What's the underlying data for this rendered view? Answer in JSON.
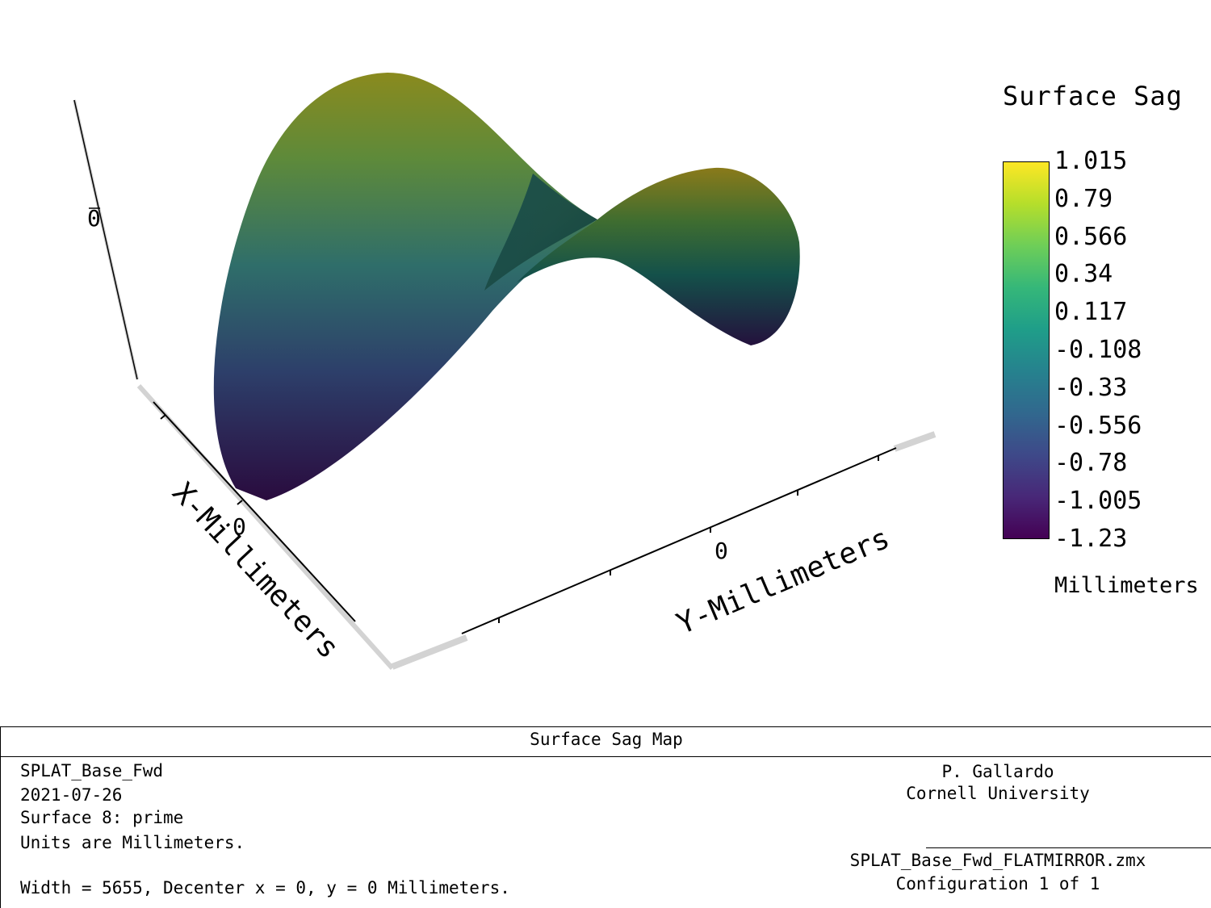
{
  "chart_data": {
    "type": "surface3d",
    "title": "",
    "xlabel": "X-Millimeters",
    "ylabel": "Y-Millimeters",
    "x_ticks": [
      "0"
    ],
    "y_ticks": [
      "0"
    ],
    "z_ticks": [
      "0"
    ],
    "zlim": [
      -1.23,
      1.015
    ],
    "shape": "saddle",
    "colormap": "viridis",
    "colorbar": {
      "title": "Surface Sag",
      "unit": "Millimeters",
      "ticks": [
        "1.015",
        "0.79",
        "0.566",
        "0.34",
        "0.117",
        "-0.108",
        "-0.33",
        "-0.556",
        "-0.78",
        "-1.005",
        "-1.23"
      ],
      "colors": [
        "#fde725",
        "#b5de2b",
        "#6ece58",
        "#35b779",
        "#1f9e89",
        "#26828e",
        "#31688e",
        "#3e4989",
        "#482878",
        "#440154"
      ]
    }
  },
  "footer": {
    "title": "Surface Sag Map",
    "left_lines": [
      "SPLAT_Base_Fwd",
      "2021-07-26",
      "Surface 8: prime",
      "Units are Millimeters."
    ],
    "width_line": "Width = 5655, Decenter x = 0, y = 0 Millimeters.",
    "author": "P. Gallardo",
    "institution": "Cornell University",
    "file": "SPLAT_Base_Fwd_FLATMIRROR.zmx",
    "configuration": "Configuration 1 of 1"
  }
}
